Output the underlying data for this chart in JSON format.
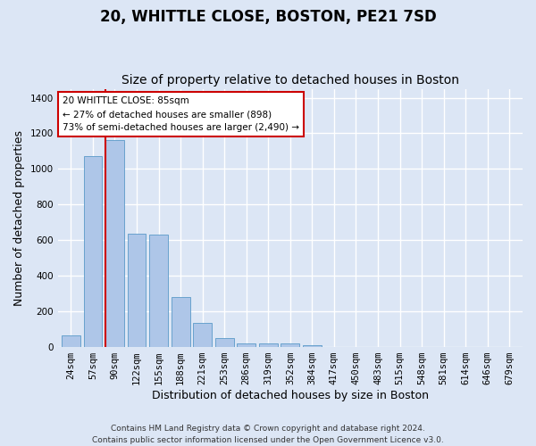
{
  "title": "20, WHITTLE CLOSE, BOSTON, PE21 7SD",
  "subtitle": "Size of property relative to detached houses in Boston",
  "xlabel": "Distribution of detached houses by size in Boston",
  "ylabel": "Number of detached properties",
  "categories": [
    "24sqm",
    "57sqm",
    "90sqm",
    "122sqm",
    "155sqm",
    "188sqm",
    "221sqm",
    "253sqm",
    "286sqm",
    "319sqm",
    "352sqm",
    "384sqm",
    "417sqm",
    "450sqm",
    "483sqm",
    "515sqm",
    "548sqm",
    "581sqm",
    "614sqm",
    "646sqm",
    "679sqm"
  ],
  "values": [
    65,
    1070,
    1160,
    635,
    630,
    280,
    135,
    48,
    22,
    18,
    22,
    12,
    0,
    0,
    0,
    0,
    0,
    0,
    0,
    0,
    0
  ],
  "bar_color": "#aec6e8",
  "bar_edge_color": "#5a9ac8",
  "property_line_x": 1.58,
  "property_line_color": "#cc0000",
  "annotation_text": "20 WHITTLE CLOSE: 85sqm\n← 27% of detached houses are smaller (898)\n73% of semi-detached houses are larger (2,490) →",
  "annotation_box_color": "#ffffff",
  "annotation_box_edge_color": "#cc0000",
  "ylim": [
    0,
    1450
  ],
  "yticks": [
    0,
    200,
    400,
    600,
    800,
    1000,
    1200,
    1400
  ],
  "footer": "Contains HM Land Registry data © Crown copyright and database right 2024.\nContains public sector information licensed under the Open Government Licence v3.0.",
  "bg_color": "#dce6f5",
  "plot_bg_color": "#dce6f5",
  "grid_color": "#ffffff",
  "title_fontsize": 12,
  "subtitle_fontsize": 10,
  "label_fontsize": 9,
  "tick_fontsize": 7.5,
  "footer_fontsize": 6.5
}
